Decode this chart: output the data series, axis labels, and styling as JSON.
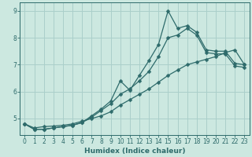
{
  "xlabel": "Humidex (Indice chaleur)",
  "xlim": [
    -0.5,
    23.5
  ],
  "ylim": [
    4.4,
    9.3
  ],
  "background_color": "#cce8e0",
  "grid_color": "#aacfca",
  "line_color": "#2e6b6b",
  "x": [
    0,
    1,
    2,
    3,
    4,
    5,
    6,
    7,
    8,
    9,
    10,
    11,
    12,
    13,
    14,
    15,
    16,
    17,
    18,
    19,
    20,
    21,
    22,
    23
  ],
  "y_spiky": [
    4.8,
    4.6,
    4.6,
    4.65,
    4.7,
    4.75,
    4.85,
    5.1,
    5.35,
    5.65,
    6.4,
    6.05,
    6.6,
    7.15,
    7.75,
    9.0,
    8.35,
    8.45,
    8.2,
    7.55,
    7.5,
    7.5,
    7.05,
    7.0
  ],
  "y_mid": [
    4.8,
    4.6,
    4.6,
    4.65,
    4.7,
    4.75,
    4.85,
    5.05,
    5.3,
    5.55,
    5.9,
    6.1,
    6.4,
    6.75,
    7.3,
    8.0,
    8.1,
    8.35,
    8.1,
    7.45,
    7.4,
    7.4,
    6.95,
    6.9
  ],
  "y_linear": [
    4.8,
    4.65,
    4.7,
    4.72,
    4.75,
    4.8,
    4.9,
    5.0,
    5.1,
    5.25,
    5.5,
    5.7,
    5.9,
    6.1,
    6.35,
    6.6,
    6.8,
    7.0,
    7.1,
    7.2,
    7.3,
    7.45,
    7.55,
    7.0
  ],
  "yticks": [
    5,
    6,
    7,
    8,
    9
  ],
  "xticks": [
    0,
    1,
    2,
    3,
    4,
    5,
    6,
    7,
    8,
    9,
    10,
    11,
    12,
    13,
    14,
    15,
    16,
    17,
    18,
    19,
    20,
    21,
    22,
    23
  ],
  "marker_size": 2.5,
  "line_width": 0.9
}
